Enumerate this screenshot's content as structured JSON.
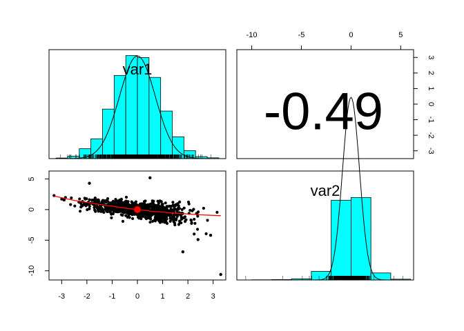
{
  "chart_data": [
    {
      "type": "bar",
      "panel": "top-left",
      "label": "var1",
      "bin_edges": [
        -3.5,
        -3.0,
        -2.5,
        -2.0,
        -1.5,
        -1.0,
        -0.5,
        0.0,
        0.5,
        1.0,
        1.5,
        2.0,
        2.5,
        3.0,
        3.5
      ],
      "density": [
        0.003,
        0.012,
        0.05,
        0.1,
        0.25,
        0.42,
        0.52,
        0.51,
        0.41,
        0.24,
        0.11,
        0.04,
        0.01,
        0.004
      ],
      "ylim": [
        0,
        0.55
      ],
      "density_curve": true,
      "rug": true,
      "bar_color": "#00FFFF"
    },
    {
      "type": "table",
      "panel": "top-right",
      "correlation_text": "-0.49",
      "top_axis": {
        "range": [
          -11.5,
          6.3
        ],
        "ticks": [
          -10,
          -5,
          0,
          5
        ]
      },
      "right_axis": {
        "range": [
          -3.5,
          3.5
        ],
        "ticks": [
          -3,
          -2,
          -1,
          0,
          1,
          2,
          3
        ]
      }
    },
    {
      "type": "scatter",
      "panel": "bottom-left",
      "xlim": [
        -3.5,
        3.5
      ],
      "ylim": [
        -11.5,
        6.3
      ],
      "x_ticks": [
        -3,
        -2,
        -1,
        0,
        1,
        2,
        3
      ],
      "y_ticks": [
        -10,
        -5,
        0,
        5
      ],
      "points_described": "approx. 1000 points, negative linear relationship",
      "outliers": [
        {
          "x": 3.3,
          "y": -10.6
        },
        {
          "x": 1.8,
          "y": -6.9
        },
        {
          "x": 2.4,
          "y": -4.9
        },
        {
          "x": 0.5,
          "y": 5.2
        },
        {
          "x": -1.9,
          "y": 4.3
        },
        {
          "x": 2.9,
          "y": -4.2
        }
      ],
      "mean_point": {
        "x": 0.0,
        "y": 0.0
      },
      "loess_line": [
        {
          "x": -3.3,
          "y": 2.2
        },
        {
          "x": -2.5,
          "y": 1.5
        },
        {
          "x": -1.5,
          "y": 0.85
        },
        {
          "x": -0.5,
          "y": 0.25
        },
        {
          "x": 0.0,
          "y": 0.0
        },
        {
          "x": 0.5,
          "y": -0.25
        },
        {
          "x": 1.5,
          "y": -0.6
        },
        {
          "x": 2.5,
          "y": -0.85
        },
        {
          "x": 3.3,
          "y": -1.0
        }
      ],
      "loess_color": "#FF0000",
      "mean_point_color": "#FF0000"
    },
    {
      "type": "bar",
      "panel": "bottom-right",
      "label": "var2",
      "bin_edges": [
        -10,
        -8,
        -6,
        -4,
        -2,
        0,
        2,
        4,
        6
      ],
      "density": [
        0.0005,
        0.001,
        0.003,
        0.022,
        0.205,
        0.212,
        0.018,
        0.002
      ],
      "ylim": [
        0,
        0.28
      ],
      "density_curve": true,
      "rug": true,
      "bar_color": "#00FFFF"
    }
  ]
}
